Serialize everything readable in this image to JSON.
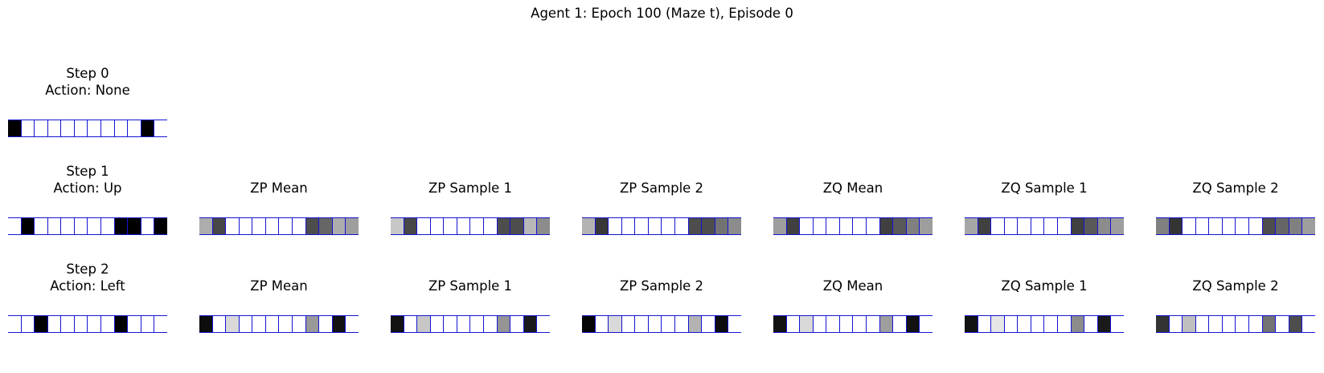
{
  "figure": {
    "title": "Agent 1: Epoch 100 (Maze t), Episode 0"
  },
  "rows": [
    {
      "panels": [
        {
          "title_lines": [
            "Step 0",
            "Action: None"
          ],
          "cells": [
            0,
            1,
            1,
            1,
            1,
            1,
            1,
            1,
            1,
            1,
            0,
            1
          ]
        }
      ]
    },
    {
      "panels": [
        {
          "title_lines": [
            "Step 1",
            "Action: Up"
          ],
          "cells": [
            1,
            0,
            1,
            1,
            1,
            1,
            1,
            1,
            0,
            0,
            1,
            0
          ]
        },
        {
          "title_lines": [
            "ZP Mean"
          ],
          "cells": [
            0.68,
            0.28,
            1,
            1,
            1,
            1,
            1,
            1,
            0.3,
            0.4,
            0.68,
            0.62
          ]
        },
        {
          "title_lines": [
            "ZP Sample 1"
          ],
          "cells": [
            0.78,
            0.28,
            1,
            1,
            1,
            1,
            1,
            1,
            0.3,
            0.3,
            0.72,
            0.55
          ]
        },
        {
          "title_lines": [
            "ZP Sample 2"
          ],
          "cells": [
            0.7,
            0.22,
            1,
            1,
            1,
            1,
            1,
            1,
            0.3,
            0.3,
            0.45,
            0.55
          ]
        },
        {
          "title_lines": [
            "ZQ Mean"
          ],
          "cells": [
            0.62,
            0.25,
            1,
            1,
            1,
            1,
            1,
            1,
            0.25,
            0.35,
            0.5,
            0.62
          ]
        },
        {
          "title_lines": [
            "ZQ Sample 1"
          ],
          "cells": [
            0.65,
            0.25,
            1,
            1,
            1,
            1,
            1,
            1,
            0.25,
            0.35,
            0.55,
            0.62
          ]
        },
        {
          "title_lines": [
            "ZQ Sample 2"
          ],
          "cells": [
            0.5,
            0.2,
            1,
            1,
            1,
            1,
            1,
            1,
            0.3,
            0.4,
            0.5,
            0.62
          ]
        }
      ]
    },
    {
      "panels": [
        {
          "title_lines": [
            "Step 2",
            "Action: Left"
          ],
          "cells": [
            1,
            1,
            0,
            1,
            1,
            1,
            1,
            1,
            0,
            1,
            1,
            1
          ]
        },
        {
          "title_lines": [
            "ZP Mean"
          ],
          "cells": [
            0.05,
            1,
            0.85,
            1,
            1,
            1,
            1,
            1,
            0.6,
            1,
            0.07,
            1
          ]
        },
        {
          "title_lines": [
            "ZP Sample 1"
          ],
          "cells": [
            0.07,
            1,
            0.78,
            1,
            1,
            1,
            1,
            1,
            0.58,
            1,
            0.1,
            1
          ]
        },
        {
          "title_lines": [
            "ZP Sample 2"
          ],
          "cells": [
            0.02,
            1,
            0.85,
            1,
            1,
            1,
            1,
            1,
            0.7,
            1,
            0.05,
            1
          ]
        },
        {
          "title_lines": [
            "ZQ Mean"
          ],
          "cells": [
            0.07,
            1,
            0.85,
            1,
            1,
            1,
            1,
            1,
            0.62,
            1,
            0.07,
            1
          ]
        },
        {
          "title_lines": [
            "ZQ Sample 1"
          ],
          "cells": [
            0.07,
            1,
            0.9,
            1,
            1,
            1,
            1,
            1,
            0.55,
            1,
            0.1,
            1
          ]
        },
        {
          "title_lines": [
            "ZQ Sample 2"
          ],
          "cells": [
            0.2,
            1,
            0.75,
            1,
            1,
            1,
            1,
            1,
            0.45,
            1,
            0.3,
            1
          ]
        }
      ]
    }
  ]
}
